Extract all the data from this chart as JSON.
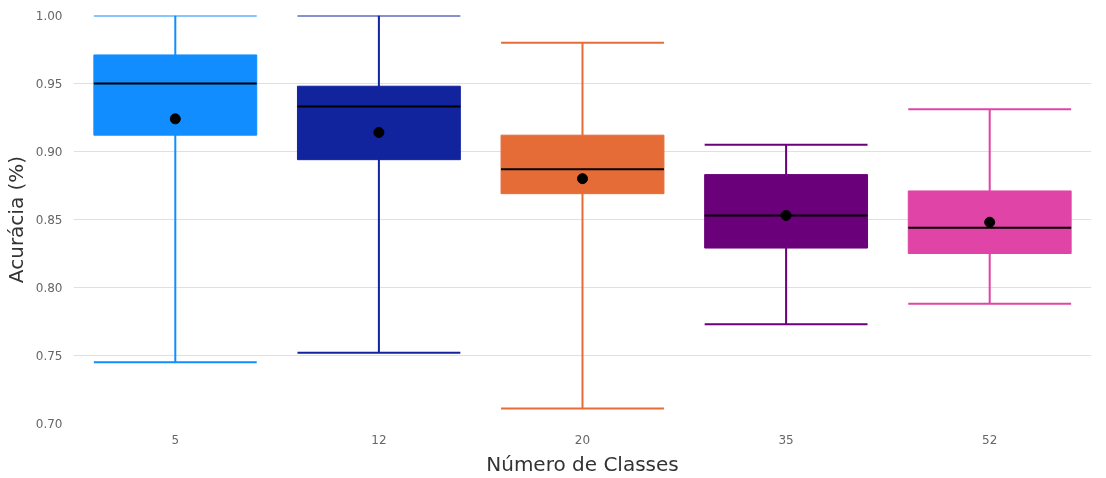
{
  "chart_data": {
    "type": "box",
    "xlabel": "Número de Classes",
    "ylabel": "Acurácia (%)",
    "categories": [
      "5",
      "12",
      "20",
      "35",
      "52"
    ],
    "colors": [
      "#118dff",
      "#12239e",
      "#e66c37",
      "#6b007b",
      "#e044a7"
    ],
    "boxes": [
      {
        "low": 0.745,
        "q1": 0.912,
        "median": 0.95,
        "q3": 0.971,
        "high": 1.0,
        "mean": 0.924
      },
      {
        "low": 0.752,
        "q1": 0.894,
        "median": 0.933,
        "q3": 0.948,
        "high": 1.0,
        "mean": 0.914
      },
      {
        "low": 0.711,
        "q1": 0.869,
        "median": 0.887,
        "q3": 0.912,
        "high": 0.98,
        "mean": 0.88
      },
      {
        "low": 0.773,
        "q1": 0.829,
        "median": 0.853,
        "q3": 0.883,
        "high": 0.905,
        "mean": 0.853
      },
      {
        "low": 0.788,
        "q1": 0.825,
        "median": 0.844,
        "q3": 0.871,
        "high": 0.931,
        "mean": 0.848
      }
    ],
    "ylim": [
      0.7,
      1.0
    ],
    "yticks": [
      {
        "value": 0.7,
        "label": "0.70"
      },
      {
        "value": 0.75,
        "label": "0.75"
      },
      {
        "value": 0.8,
        "label": "0.80"
      },
      {
        "value": 0.85,
        "label": "0.85"
      },
      {
        "value": 0.9,
        "label": "0.90"
      },
      {
        "value": 0.95,
        "label": "0.95"
      },
      {
        "value": 1.0,
        "label": "1.00"
      }
    ],
    "grid": "y"
  }
}
